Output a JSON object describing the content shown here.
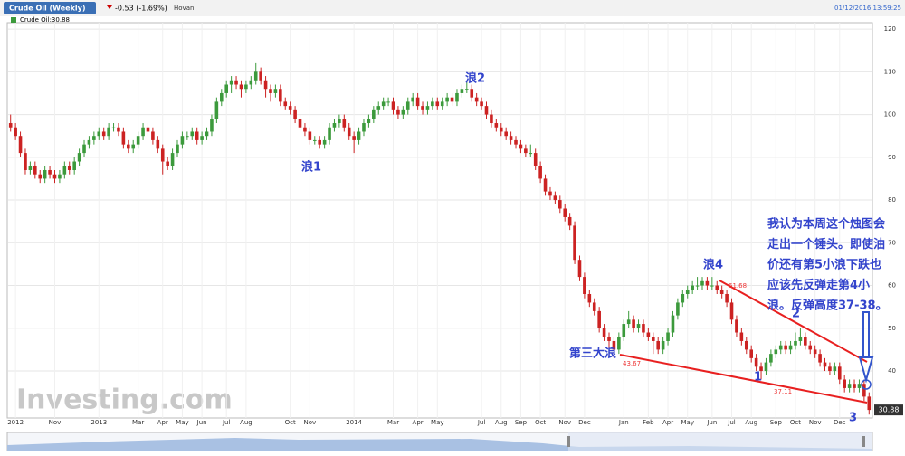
{
  "header": {
    "tab": "Crude Oil (Weekly)",
    "change": "-0.53 (-1.69%)",
    "user": "Hovan",
    "timestamp": "01/12/2016 13:59:25",
    "legend": "Crude Oil:30.88",
    "watermark": "Investing.com"
  },
  "chart_data": {
    "type": "candlestick",
    "up_color": "#3c9a3c",
    "down_color": "#cc2222",
    "grid": true,
    "xlim": [
      -0.5,
      175.5
    ],
    "ylim": [
      29,
      121.5
    ],
    "yticks": [
      40,
      50,
      60,
      70,
      80,
      90,
      100,
      110,
      120
    ],
    "xticks": [
      {
        "value": 1,
        "label": "2012"
      },
      {
        "value": 9,
        "label": "Nov"
      },
      {
        "value": 18,
        "label": "2013"
      },
      {
        "value": 26,
        "label": "Mar"
      },
      {
        "value": 31,
        "label": "Apr"
      },
      {
        "value": 35,
        "label": "May"
      },
      {
        "value": 39,
        "label": "Jun"
      },
      {
        "value": 44,
        "label": "Jul"
      },
      {
        "value": 48,
        "label": "Aug"
      },
      {
        "value": 57,
        "label": "Oct"
      },
      {
        "value": 61,
        "label": "Nov"
      },
      {
        "value": 70,
        "label": "2014"
      },
      {
        "value": 78,
        "label": "Mar"
      },
      {
        "value": 83,
        "label": "Apr"
      },
      {
        "value": 87,
        "label": "May"
      },
      {
        "value": 96,
        "label": "Jul"
      },
      {
        "value": 100,
        "label": "Aug"
      },
      {
        "value": 104,
        "label": "Sep"
      },
      {
        "value": 108,
        "label": "Oct"
      },
      {
        "value": 113,
        "label": "Nov"
      },
      {
        "value": 117,
        "label": "Dec"
      },
      {
        "value": 125,
        "label": "Jan"
      },
      {
        "value": 130,
        "label": "Feb"
      },
      {
        "value": 134,
        "label": "Apr"
      },
      {
        "value": 138,
        "label": "May"
      },
      {
        "value": 143,
        "label": "Jun"
      },
      {
        "value": 147,
        "label": "Jul"
      },
      {
        "value": 151,
        "label": "Aug"
      },
      {
        "value": 156,
        "label": "Sep"
      },
      {
        "value": 160,
        "label": "Oct"
      },
      {
        "value": 164,
        "label": "Nov"
      },
      {
        "value": 169,
        "label": "Dec"
      }
    ],
    "price_label": 30.88,
    "candles": [
      [
        98,
        100,
        96,
        97
      ],
      [
        97,
        98,
        94,
        95
      ],
      [
        95,
        96,
        90,
        91
      ],
      [
        91,
        92,
        86,
        87
      ],
      [
        87,
        89,
        86,
        88
      ],
      [
        88,
        89,
        85,
        86
      ],
      [
        86,
        87,
        84,
        85
      ],
      [
        85,
        88,
        84,
        87
      ],
      [
        87,
        88,
        85,
        86
      ],
      [
        86,
        87,
        84,
        85
      ],
      [
        85,
        87,
        84,
        86
      ],
      [
        86,
        89,
        85,
        88
      ],
      [
        88,
        89,
        86,
        87
      ],
      [
        87,
        90,
        86,
        89
      ],
      [
        89,
        92,
        88,
        91
      ],
      [
        91,
        94,
        90,
        93
      ],
      [
        93,
        95,
        92,
        94
      ],
      [
        94,
        96,
        93,
        95
      ],
      [
        95,
        97,
        94,
        96
      ],
      [
        96,
        97,
        94,
        95
      ],
      [
        95,
        98,
        94,
        97
      ],
      [
        97,
        98,
        96,
        97
      ],
      [
        97,
        98,
        95,
        96
      ],
      [
        96,
        97,
        92,
        93
      ],
      [
        93,
        94,
        91,
        92
      ],
      [
        92,
        94,
        91,
        93
      ],
      [
        93,
        96,
        92,
        95
      ],
      [
        95,
        98,
        94,
        97
      ],
      [
        97,
        98,
        95,
        96
      ],
      [
        96,
        97,
        93,
        94
      ],
      [
        94,
        95,
        91,
        92
      ],
      [
        92,
        93,
        86,
        89
      ],
      [
        89,
        90,
        87,
        88
      ],
      [
        88,
        92,
        87,
        91
      ],
      [
        91,
        94,
        90,
        93
      ],
      [
        93,
        96,
        92,
        95
      ],
      [
        95,
        96,
        94,
        95
      ],
      [
        95,
        97,
        94,
        96
      ],
      [
        96,
        97,
        93,
        94
      ],
      [
        94,
        96,
        93,
        95
      ],
      [
        95,
        97,
        94,
        96
      ],
      [
        96,
        100,
        95,
        99
      ],
      [
        99,
        104,
        98,
        103
      ],
      [
        103,
        106,
        102,
        105
      ],
      [
        105,
        108,
        104,
        107
      ],
      [
        107,
        109,
        105,
        108
      ],
      [
        108,
        109,
        106,
        107
      ],
      [
        107,
        108,
        104,
        106
      ],
      [
        106,
        108,
        105,
        107
      ],
      [
        107,
        109,
        106,
        108
      ],
      [
        108,
        112,
        107,
        110
      ],
      [
        110,
        111,
        107,
        108
      ],
      [
        108,
        109,
        104,
        106
      ],
      [
        106,
        107,
        103,
        105
      ],
      [
        105,
        107,
        104,
        106
      ],
      [
        106,
        107,
        102,
        103
      ],
      [
        103,
        104,
        101,
        102
      ],
      [
        102,
        103,
        100,
        101
      ],
      [
        101,
        102,
        98,
        99
      ],
      [
        99,
        100,
        96,
        97
      ],
      [
        97,
        98,
        95,
        96
      ],
      [
        96,
        97,
        93,
        94
      ],
      [
        94,
        95,
        93,
        94
      ],
      [
        94,
        95,
        92,
        93
      ],
      [
        93,
        95,
        92,
        94
      ],
      [
        94,
        98,
        93,
        97
      ],
      [
        97,
        99,
        96,
        98
      ],
      [
        98,
        100,
        97,
        99
      ],
      [
        99,
        100,
        96,
        97
      ],
      [
        97,
        98,
        94,
        95
      ],
      [
        95,
        96,
        91,
        94
      ],
      [
        94,
        97,
        93,
        96
      ],
      [
        96,
        99,
        95,
        98
      ],
      [
        98,
        100,
        97,
        99
      ],
      [
        99,
        102,
        98,
        101
      ],
      [
        101,
        103,
        100,
        102
      ],
      [
        102,
        104,
        101,
        103
      ],
      [
        103,
        104,
        102,
        103
      ],
      [
        103,
        104,
        100,
        101
      ],
      [
        101,
        102,
        99,
        100
      ],
      [
        100,
        102,
        99,
        101
      ],
      [
        101,
        104,
        100,
        103
      ],
      [
        103,
        105,
        102,
        104
      ],
      [
        104,
        105,
        101,
        102
      ],
      [
        102,
        103,
        100,
        101
      ],
      [
        101,
        103,
        100,
        102
      ],
      [
        102,
        104,
        101,
        103
      ],
      [
        103,
        104,
        101,
        102
      ],
      [
        102,
        104,
        101,
        103
      ],
      [
        103,
        105,
        102,
        104
      ],
      [
        104,
        105,
        102,
        103
      ],
      [
        103,
        106,
        102,
        105
      ],
      [
        105,
        107,
        104,
        106
      ],
      [
        106,
        108,
        105,
        106
      ],
      [
        106,
        107,
        103,
        104
      ],
      [
        104,
        105,
        102,
        103
      ],
      [
        103,
        104,
        101,
        102
      ],
      [
        102,
        103,
        99,
        100
      ],
      [
        100,
        101,
        97,
        98
      ],
      [
        98,
        99,
        96,
        97
      ],
      [
        97,
        98,
        95,
        96
      ],
      [
        96,
        97,
        94,
        95
      ],
      [
        95,
        96,
        93,
        94
      ],
      [
        94,
        95,
        92,
        93
      ],
      [
        93,
        94,
        91,
        92
      ],
      [
        92,
        93,
        90,
        91
      ],
      [
        91,
        93,
        90,
        91
      ],
      [
        91,
        92,
        87,
        88
      ],
      [
        88,
        89,
        84,
        85
      ],
      [
        85,
        86,
        81,
        82
      ],
      [
        82,
        83,
        80,
        81
      ],
      [
        81,
        82,
        79,
        80
      ],
      [
        80,
        81,
        77,
        78
      ],
      [
        78,
        79,
        75,
        76
      ],
      [
        76,
        77,
        73,
        74
      ],
      [
        74,
        75,
        65,
        66
      ],
      [
        66,
        67,
        61,
        62
      ],
      [
        62,
        63,
        57,
        58
      ],
      [
        58,
        59,
        55,
        56
      ],
      [
        56,
        57,
        53,
        54
      ],
      [
        54,
        55,
        49,
        50
      ],
      [
        50,
        51,
        47,
        48
      ],
      [
        48,
        49,
        45,
        47
      ],
      [
        47,
        48,
        43,
        45
      ],
      [
        45,
        49,
        44,
        48
      ],
      [
        48,
        52,
        47,
        51
      ],
      [
        51,
        54,
        50,
        52
      ],
      [
        52,
        53,
        49,
        50
      ],
      [
        50,
        52,
        49,
        51
      ],
      [
        51,
        52,
        48,
        49
      ],
      [
        49,
        50,
        47,
        48
      ],
      [
        48,
        49,
        44,
        47
      ],
      [
        47,
        48,
        44,
        45
      ],
      [
        45,
        48,
        44,
        47
      ],
      [
        47,
        50,
        46,
        49
      ],
      [
        49,
        54,
        48,
        53
      ],
      [
        53,
        57,
        52,
        56
      ],
      [
        56,
        59,
        55,
        58
      ],
      [
        58,
        60,
        57,
        59
      ],
      [
        59,
        61,
        58,
        60
      ],
      [
        60,
        62,
        59,
        60
      ],
      [
        60,
        62,
        59,
        61
      ],
      [
        61,
        62,
        59,
        60
      ],
      [
        60,
        62,
        59,
        60
      ],
      [
        60,
        61,
        58,
        59
      ],
      [
        59,
        60,
        57,
        58
      ],
      [
        58,
        59,
        55,
        56
      ],
      [
        56,
        57,
        51,
        52
      ],
      [
        52,
        53,
        48,
        49
      ],
      [
        49,
        50,
        46,
        47
      ],
      [
        47,
        48,
        44,
        45
      ],
      [
        45,
        46,
        42,
        43
      ],
      [
        43,
        44,
        40,
        41
      ],
      [
        41,
        42,
        38,
        40
      ],
      [
        40,
        43,
        39,
        42
      ],
      [
        42,
        45,
        41,
        44
      ],
      [
        44,
        46,
        43,
        45
      ],
      [
        45,
        47,
        44,
        46
      ],
      [
        46,
        47,
        44,
        45
      ],
      [
        45,
        47,
        44,
        46
      ],
      [
        46,
        49,
        45,
        47
      ],
      [
        47,
        50,
        46,
        48
      ],
      [
        48,
        49,
        45,
        46
      ],
      [
        46,
        47,
        44,
        45
      ],
      [
        45,
        46,
        43,
        44
      ],
      [
        44,
        45,
        41,
        42
      ],
      [
        42,
        43,
        40,
        41
      ],
      [
        41,
        42,
        39,
        40
      ],
      [
        40,
        42,
        39,
        41
      ],
      [
        41,
        42,
        37,
        38
      ],
      [
        38,
        39,
        35,
        36
      ],
      [
        36,
        38,
        35,
        37
      ],
      [
        37,
        38,
        35,
        36
      ],
      [
        36,
        38,
        35,
        37
      ],
      [
        37,
        38,
        33,
        34
      ],
      [
        34,
        35,
        29.8,
        30.88
      ]
    ],
    "annotations": {
      "wave1": "浪1",
      "wave2": "浪2",
      "wave4": "浪4",
      "wave3_major": "第三大浪",
      "sub1": "1",
      "sub2": "2",
      "sub3": "3",
      "low_label": "43.67",
      "high_label": "61.68",
      "low2_label": "37.11",
      "comment": [
        "我认为本周这个烛图会",
        "走出一个锤头。即使油",
        "价还有第5小浪下跌也",
        "应该先反弹走第4小",
        "浪。反弹高度37-38。"
      ]
    }
  }
}
